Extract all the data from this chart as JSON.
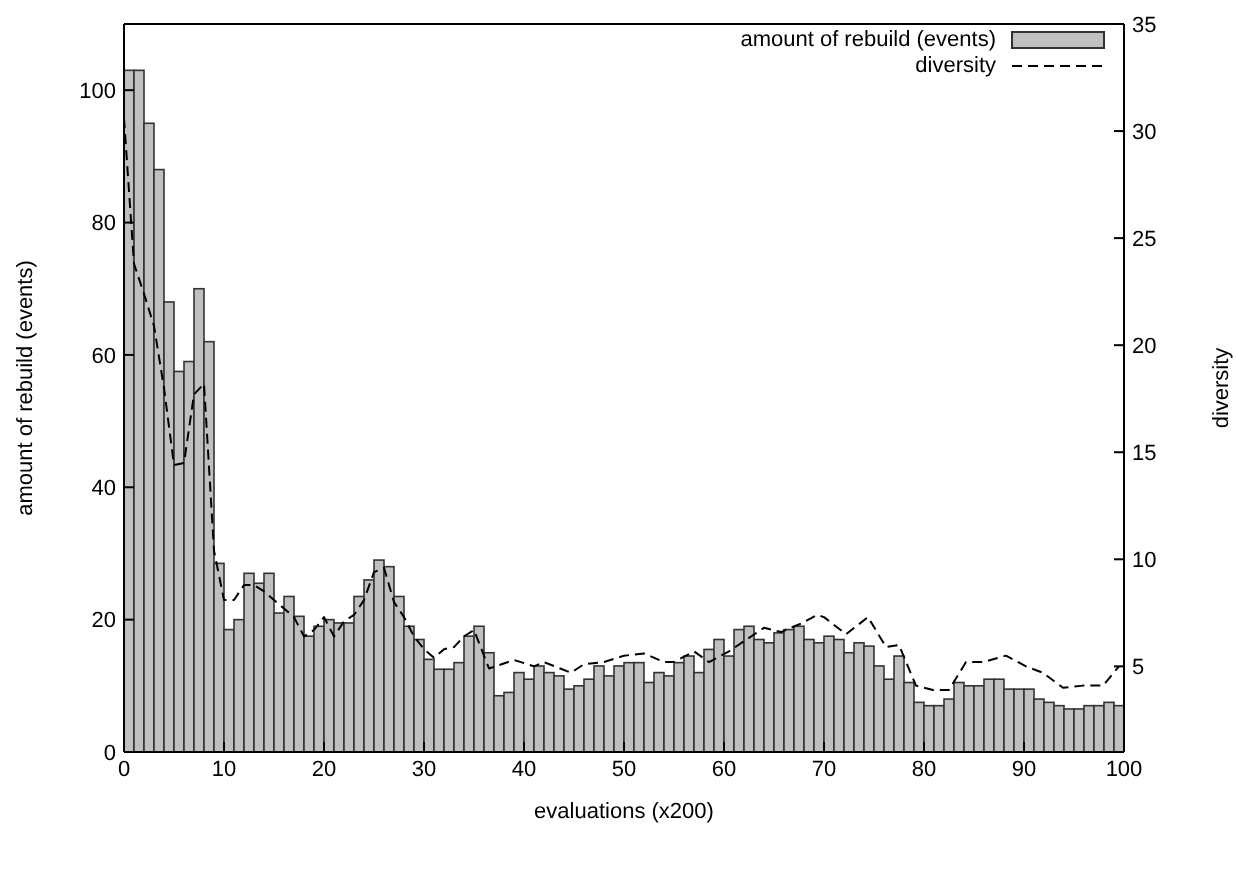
{
  "chart_data": {
    "type": "histogram",
    "xlabel": "evaluations (x200)",
    "ylabel": "amount of rebuild (events)",
    "y2label": "diversity",
    "bins": [
      0,
      1,
      2,
      3,
      4,
      5,
      6,
      7,
      8,
      9,
      10,
      11,
      12,
      13,
      14,
      15,
      16,
      17,
      18,
      19,
      20,
      21,
      22,
      23,
      24,
      25,
      26,
      27,
      28,
      29,
      30,
      31,
      32,
      33,
      34,
      35,
      36,
      37,
      38,
      39,
      40,
      41,
      42,
      43,
      44,
      45,
      46,
      47,
      48,
      49,
      50,
      51,
      52,
      53,
      54,
      55,
      56,
      57,
      58,
      59,
      60,
      61,
      62,
      63,
      64,
      65,
      66,
      67,
      68,
      69,
      70,
      71,
      72,
      73,
      74,
      75,
      76,
      77,
      78,
      79,
      80,
      81,
      82,
      83,
      84,
      85,
      86,
      87,
      88,
      89,
      90,
      91,
      92,
      93,
      94,
      95,
      96,
      97,
      98,
      99,
      100
    ],
    "series": [
      {
        "name": "amount of rebuild (events)",
        "color": "#c0c0c0",
        "values": [
          103,
          103,
          95,
          88,
          68,
          57.5,
          59,
          70,
          62,
          28.5,
          18.5,
          20,
          27,
          25.5,
          27,
          21,
          23.5,
          20.5,
          17.5,
          19,
          20,
          19.5,
          19.5,
          23.5,
          26,
          29,
          28,
          23.5,
          19,
          17,
          14,
          12.5,
          12.5,
          13.5,
          17.5,
          19,
          15,
          8.5,
          9,
          12,
          11,
          13,
          12,
          11.5,
          9.5,
          10,
          11,
          13,
          11.5,
          13,
          13.5,
          13.5,
          10.5,
          12,
          11.5,
          13.5,
          14.5,
          12,
          15.5,
          17,
          14.5,
          18.5,
          19,
          17,
          16.5,
          18,
          18.5,
          19,
          17,
          16.5,
          17.5,
          17,
          15,
          16.5,
          16,
          13,
          11,
          14.5,
          10.5,
          7.5,
          7,
          7,
          8,
          10.5,
          10,
          10,
          11,
          11,
          9.5,
          9.5,
          9.5,
          8,
          7.5,
          7,
          6.5,
          6.5,
          7,
          7,
          7.5,
          7
        ]
      },
      {
        "name": "diversity",
        "type": "line",
        "axis": "y2",
        "color": "#000000",
        "line_style": "dashed",
        "x": [
          0,
          1,
          2,
          3,
          4,
          5,
          6,
          7,
          8,
          9,
          10,
          11,
          12,
          13,
          14,
          15,
          16,
          17,
          18,
          19,
          20,
          21,
          22,
          23,
          24,
          25,
          26,
          27,
          28,
          29,
          30,
          31,
          32,
          33,
          34,
          35,
          36.5,
          39,
          41,
          42,
          44.7,
          46,
          48,
          50,
          52,
          54,
          55,
          57,
          58.5,
          60.5,
          62.4,
          64,
          65.7,
          67.7,
          69.3,
          70,
          72.2,
          74.4,
          76.2,
          77.5,
          79.2,
          80.9,
          82.5,
          84.2,
          85.9,
          88.2,
          90.2,
          91.9,
          93.9,
          95.9,
          97.9,
          99.5
        ],
        "values": [
          30.6,
          23.8,
          22.4,
          20.9,
          18,
          14.4,
          14.5,
          17.7,
          18.2,
          10.4,
          8.1,
          8.1,
          8.8,
          8.8,
          8.5,
          8.1,
          7.7,
          7.3,
          6.4,
          6.7,
          7.3,
          6.4,
          7.1,
          7.4,
          8.1,
          9.4,
          9.6,
          8,
          7.3,
          6.4,
          5.8,
          5.4,
          5.8,
          5.9,
          6.4,
          6.7,
          4.9,
          5.3,
          5,
          5.2,
          4.7,
          5.1,
          5.2,
          5.5,
          5.6,
          5.2,
          5.2,
          5.7,
          5.2,
          5.7,
          6.3,
          6.8,
          6.6,
          7,
          7.4,
          7.3,
          6.5,
          7.3,
          5.9,
          6,
          4.1,
          3.9,
          3.9,
          5.2,
          5.2,
          5.5,
          5,
          4.7,
          4,
          4.1,
          4.1,
          5
        ]
      }
    ],
    "xlim": [
      0,
      100
    ],
    "xticks": [
      0,
      10,
      20,
      30,
      40,
      50,
      60,
      70,
      80,
      90,
      100
    ],
    "ylim": [
      0,
      110
    ],
    "yticks": [
      0,
      20,
      40,
      60,
      80,
      100
    ],
    "y2lim": [
      1,
      35
    ],
    "y2ticks": [
      5,
      10,
      15,
      20,
      25,
      30,
      35
    ],
    "legend": "top right"
  }
}
